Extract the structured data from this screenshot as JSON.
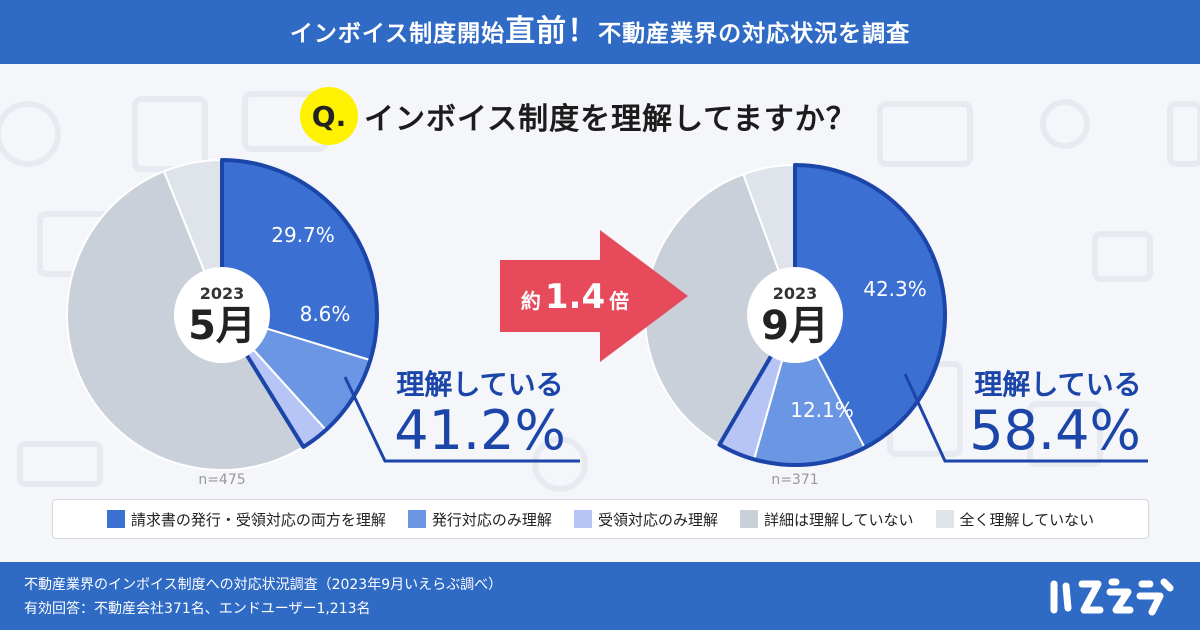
{
  "header": {
    "title_part1": "インボイス制度開始",
    "title_emph": "直前！",
    "title_part2": "不動産業界の対応状況を調査"
  },
  "question": {
    "badge": "Q.",
    "text": "インボイス制度を理解してますか？"
  },
  "colors": {
    "header_bg": "#2f6ac4",
    "series": [
      "#3b6fd1",
      "#6b96e3",
      "#b7c4f6",
      "#c9d0da",
      "#dfe3ea"
    ],
    "outline": "#1b45a8",
    "arrow": "#e64a5b",
    "highlight_text": "#1b45a8",
    "question_badge": "#fff200"
  },
  "chart_data": [
    {
      "type": "pie",
      "year": "2023",
      "month": "5月",
      "n_label": "n=475",
      "categories": [
        "請求書の発行・受領対応の両方を理解",
        "発行対応のみ理解",
        "受領対応のみ理解",
        "詳細は理解していない",
        "全く理解していない"
      ],
      "values": [
        29.7,
        8.6,
        2.9,
        52.7,
        6.1
      ],
      "labels": [
        "29.7%",
        "8.6%",
        "",
        "",
        ""
      ],
      "summary_label": "理解している",
      "summary_value": "41.2%"
    },
    {
      "type": "pie",
      "year": "2023",
      "month": "9月",
      "n_label": "n=371",
      "categories": [
        "請求書の発行・受領対応の両方を理解",
        "発行対応のみ理解",
        "受領対応のみ理解",
        "詳細は理解していない",
        "全く理解していない"
      ],
      "values": [
        42.3,
        12.1,
        4.0,
        36.0,
        5.6
      ],
      "labels": [
        "42.3%",
        "12.1%",
        "",
        "",
        ""
      ],
      "summary_label": "理解している",
      "summary_value": "58.4%"
    }
  ],
  "arrow": {
    "prefix": "約",
    "value": "1.4",
    "suffix": "倍"
  },
  "legend": [
    {
      "label": "請求書の発行・受領対応の両方を理解"
    },
    {
      "label": "発行対応のみ理解"
    },
    {
      "label": "受領対応のみ理解"
    },
    {
      "label": "詳細は理解していない"
    },
    {
      "label": "全く理解していない"
    }
  ],
  "footer": {
    "line1": "不動産業界のインボイス制度への対応状況調査（2023年9月いえらぶ調べ）",
    "line2": "有効回答：不動産会社371名、エンドユーザー1,213名",
    "logo": "いえらぶ"
  }
}
